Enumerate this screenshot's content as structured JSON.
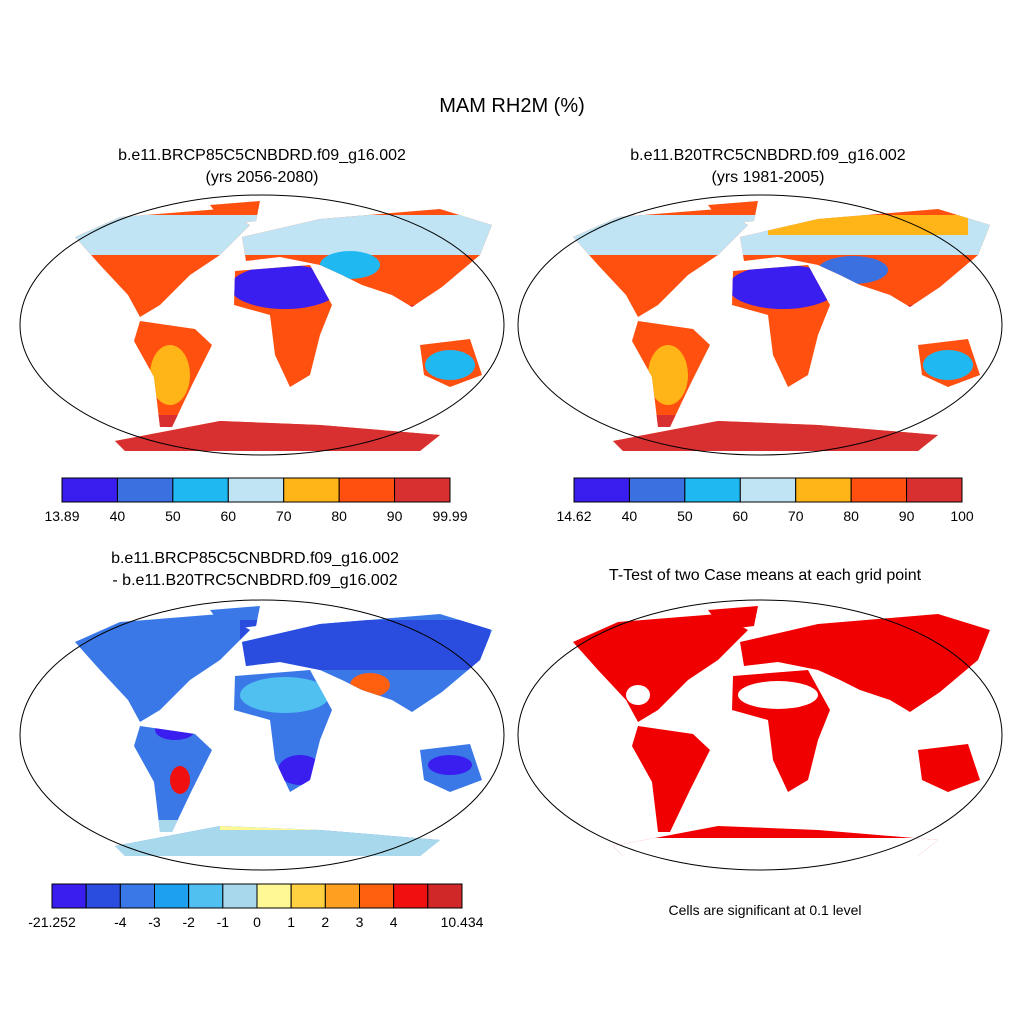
{
  "title": "MAM RH2M (%)",
  "panels": [
    {
      "title": [
        "b.e11.BRCP85C5CNBDRD.f09_g16.002",
        "(yrs 2056-2080)"
      ],
      "colorbar": {
        "colors": [
          "#3a1ef0",
          "#3a70e0",
          "#20b8f0",
          "#c0e4f4",
          "#ffb418",
          "#ff5010",
          "#d83030"
        ],
        "labels": [
          13.89,
          40,
          50,
          60,
          70,
          80,
          90,
          99.99
        ]
      }
    },
    {
      "title": [
        "b.e11.B20TRC5CNBDRD.f09_g16.002",
        "(yrs 1981-2005)"
      ],
      "colorbar": {
        "colors": [
          "#3a1ef0",
          "#3a70e0",
          "#20b8f0",
          "#c0e4f4",
          "#ffb418",
          "#ff5010",
          "#d83030"
        ],
        "labels": [
          14.62,
          40,
          50,
          60,
          70,
          80,
          90,
          100
        ]
      }
    },
    {
      "title": [
        "b.e11.BRCP85C5CNBDRD.f09_g16.002",
        "- b.e11.B20TRC5CNBDRD.f09_g16.002"
      ],
      "colorbar": {
        "colors": [
          "#3a1ef0",
          "#2a4de0",
          "#3a78e8",
          "#1ea0f0",
          "#50c0f0",
          "#a8d8ec",
          "#fff894",
          "#ffd040",
          "#ffa020",
          "#ff6010",
          "#f01010",
          "#d02828"
        ],
        "labels": [
          -21.252,
          null,
          -4,
          -3,
          -2,
          -1,
          0,
          1,
          2,
          3,
          4,
          null,
          10.434
        ]
      }
    },
    {
      "title": [
        "T-Test of two Case means at each grid point"
      ],
      "footnote": "Cells are significant at 0.1 level"
    }
  ]
}
